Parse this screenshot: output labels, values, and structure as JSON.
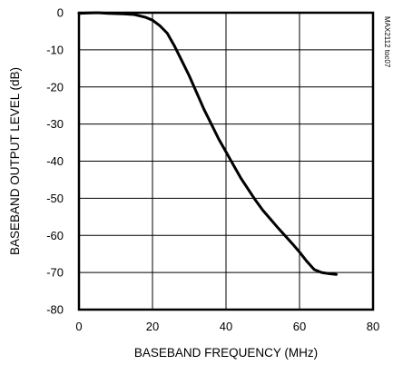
{
  "chart_data": {
    "type": "line",
    "title": "",
    "xlabel": "BASEBAND FREQUENCY (MHz)",
    "ylabel": "BASEBAND OUTPUT LEVEL (dB)",
    "xlim": [
      0,
      80
    ],
    "ylim": [
      -80,
      0
    ],
    "x_ticks": [
      0,
      20,
      40,
      60,
      80
    ],
    "y_ticks": [
      0,
      -10,
      -20,
      -30,
      -40,
      -50,
      -60,
      -70,
      -80
    ],
    "grid": true,
    "legend": "none",
    "annotation": "MAX2112 toc07",
    "series": [
      {
        "points": [
          [
            0,
            -0.2
          ],
          [
            2,
            -0.1
          ],
          [
            5,
            0
          ],
          [
            8,
            -0.2
          ],
          [
            12,
            -0.3
          ],
          [
            15,
            -0.5
          ],
          [
            18,
            -1.2
          ],
          [
            20,
            -2.0
          ],
          [
            22,
            -3.5
          ],
          [
            24,
            -5.5
          ],
          [
            26,
            -9
          ],
          [
            28,
            -13
          ],
          [
            30,
            -17
          ],
          [
            32,
            -21.5
          ],
          [
            34,
            -26
          ],
          [
            36,
            -30
          ],
          [
            38,
            -34
          ],
          [
            40,
            -37.5
          ],
          [
            42,
            -41
          ],
          [
            44,
            -44.5
          ],
          [
            46,
            -47.5
          ],
          [
            48,
            -50.5
          ],
          [
            50,
            -53.2
          ],
          [
            52,
            -55.5
          ],
          [
            54,
            -57.8
          ],
          [
            56,
            -60
          ],
          [
            58,
            -62.2
          ],
          [
            60,
            -64.5
          ],
          [
            62,
            -67
          ],
          [
            64,
            -69.2
          ],
          [
            66,
            -70
          ],
          [
            68,
            -70.3
          ],
          [
            70,
            -70.5
          ]
        ]
      }
    ]
  }
}
